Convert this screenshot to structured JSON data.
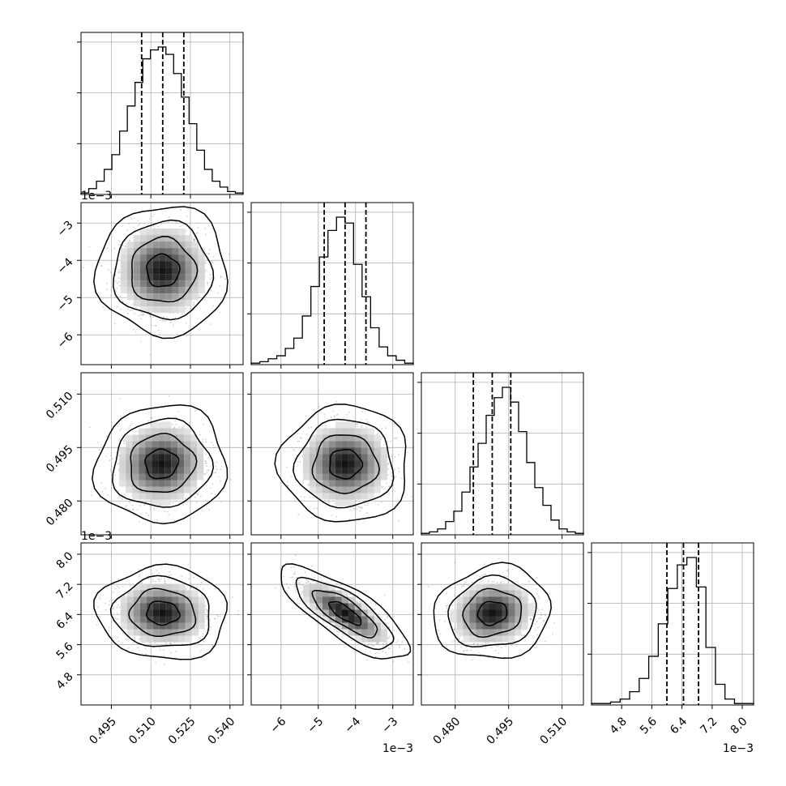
{
  "chart_data": {
    "type": "corner",
    "parameters": [
      {
        "ticks": [
          0.495,
          0.51,
          0.525,
          0.54
        ],
        "tick_labels": [
          "0.495",
          "0.510",
          "0.525",
          "0.540"
        ],
        "range": [
          0.4835,
          0.545
        ],
        "quantiles": [
          0.5065,
          0.5145,
          0.5225
        ],
        "hist": [
          0.01,
          0.04,
          0.09,
          0.17,
          0.27,
          0.43,
          0.6,
          0.76,
          0.92,
          0.98,
          1.0,
          0.95,
          0.82,
          0.66,
          0.48,
          0.3,
          0.17,
          0.09,
          0.05,
          0.02,
          0.01
        ]
      },
      {
        "ticks": [
          -6,
          -5,
          -4,
          -3
        ],
        "tick_labels": [
          "−6",
          "−5",
          "−4",
          "−3"
        ],
        "offset_text": "1e−3",
        "range": [
          -6.8,
          -2.45
        ],
        "quantiles": [
          -4.84,
          -4.28,
          -3.72
        ],
        "hist": [
          0.01,
          0.02,
          0.04,
          0.06,
          0.11,
          0.18,
          0.33,
          0.53,
          0.73,
          0.91,
          1.0,
          0.96,
          0.68,
          0.46,
          0.25,
          0.12,
          0.06,
          0.03,
          0.01
        ]
      },
      {
        "ticks": [
          0.48,
          0.495,
          0.51
        ],
        "tick_labels": [
          "0.480",
          "0.495",
          "0.510"
        ],
        "range": [
          0.4705,
          0.516
        ],
        "quantiles": [
          0.4851,
          0.4904,
          0.4956
        ],
        "hist": [
          0.01,
          0.02,
          0.04,
          0.09,
          0.16,
          0.29,
          0.46,
          0.62,
          0.81,
          0.93,
          1.0,
          0.9,
          0.7,
          0.49,
          0.32,
          0.2,
          0.1,
          0.04,
          0.02,
          0.01
        ]
      },
      {
        "ticks": [
          4.8,
          5.6,
          6.4,
          7.2,
          8.0
        ],
        "tick_labels": [
          "4.8",
          "5.6",
          "6.4",
          "7.2",
          "8.0"
        ],
        "offset_text": "1e−3",
        "range": [
          4.0,
          8.3
        ],
        "quantiles": [
          6.0,
          6.44,
          6.84
        ],
        "hist": [
          0.01,
          0.01,
          0.02,
          0.04,
          0.09,
          0.18,
          0.33,
          0.55,
          0.79,
          0.95,
          1.0,
          0.8,
          0.39,
          0.14,
          0.04,
          0.01,
          0.01
        ]
      }
    ],
    "pairs": [
      {
        "row": 1,
        "col": 0,
        "mean": [
          0.5145,
          -4.28
        ],
        "sd": [
          0.008,
          0.56
        ],
        "rho": 0.0,
        "cells": [
          0.51,
          -4.28
        ]
      },
      {
        "row": 2,
        "col": 0,
        "mean": [
          0.514,
          0.4904
        ],
        "sd": [
          0.008,
          0.0053
        ],
        "rho": 0.05,
        "cells": [
          0.513,
          0.4905
        ]
      },
      {
        "row": 2,
        "col": 1,
        "mean": [
          -4.28,
          0.4904
        ],
        "sd": [
          0.56,
          0.0053
        ],
        "rho": 0.0,
        "cells": [
          -4.2,
          0.4905
        ]
      },
      {
        "row": 3,
        "col": 0,
        "mean": [
          0.5145,
          6.44
        ],
        "sd": [
          0.008,
          0.4
        ],
        "rho": -0.05,
        "cells": [
          0.5145,
          6.44
        ]
      },
      {
        "row": 3,
        "col": 1,
        "mean": [
          -4.28,
          6.44
        ],
        "sd": [
          0.56,
          0.4
        ],
        "rho": -0.78,
        "cells": [
          -4.28,
          6.44
        ]
      },
      {
        "row": 3,
        "col": 2,
        "mean": [
          0.4904,
          6.44
        ],
        "sd": [
          0.0053,
          0.4
        ],
        "rho": 0.1,
        "cells": [
          0.4904,
          6.44
        ]
      }
    ],
    "grid": true,
    "contour_levels_sigma": [
      0.5,
      1.0,
      1.5,
      2.0
    ]
  }
}
